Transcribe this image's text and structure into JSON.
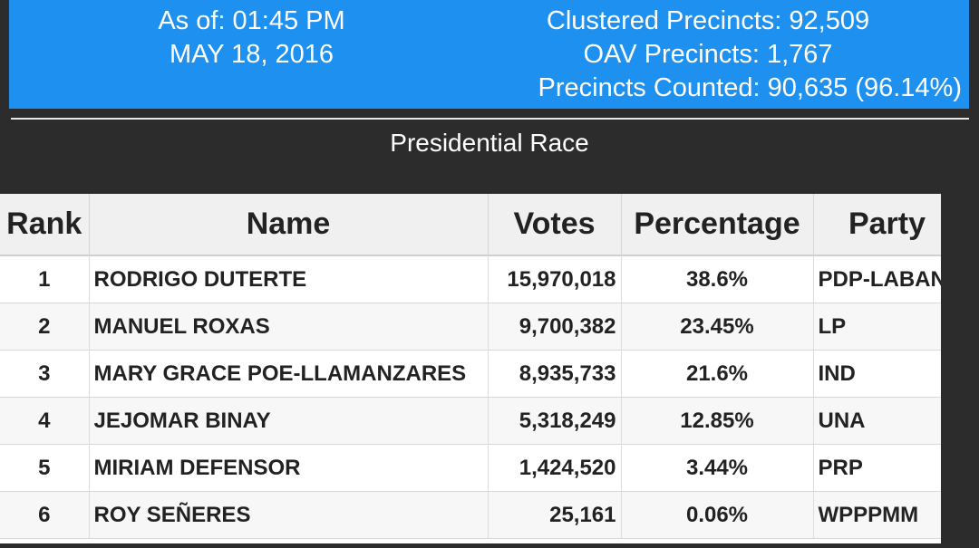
{
  "header": {
    "as_of_line1": "As of: 01:45 PM",
    "as_of_line2": "MAY 18, 2016",
    "clustered": "Clustered Precincts: 92,509",
    "oav": "OAV Precincts: 1,767",
    "counted": "Precincts Counted: 90,635 (96.14%)"
  },
  "race_title": "Presidential Race",
  "table": {
    "headers": {
      "rank": "Rank",
      "name": "Name",
      "votes": "Votes",
      "percentage": "Percentage",
      "party": "Party"
    },
    "rows": [
      {
        "rank": "1",
        "name": "RODRIGO DUTERTE",
        "votes": "15,970,018",
        "pct": "38.6%",
        "party": "PDP-LABAN"
      },
      {
        "rank": "2",
        "name": "MANUEL ROXAS",
        "votes": "9,700,382",
        "pct": "23.45%",
        "party": "LP"
      },
      {
        "rank": "3",
        "name": "MARY GRACE POE-LLAMANZARES",
        "votes": "8,935,733",
        "pct": "21.6%",
        "party": "IND"
      },
      {
        "rank": "4",
        "name": "JEJOMAR BINAY",
        "votes": "5,318,249",
        "pct": "12.85%",
        "party": "UNA"
      },
      {
        "rank": "5",
        "name": "MIRIAM DEFENSOR",
        "votes": "1,424,520",
        "pct": "3.44%",
        "party": "PRP"
      },
      {
        "rank": "6",
        "name": "ROY SEÑERES",
        "votes": "25,161",
        "pct": "0.06%",
        "party": "WPPPMM"
      }
    ]
  },
  "colors": {
    "header_bar": "#1e90f0",
    "background": "#2c2c2c"
  }
}
